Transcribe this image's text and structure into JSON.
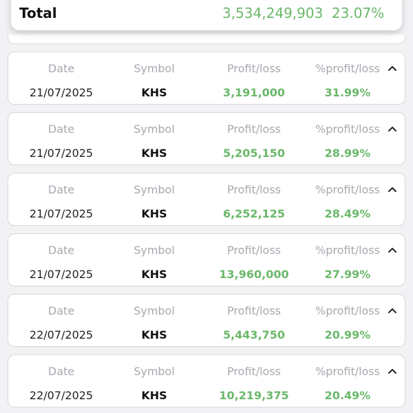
{
  "summary": {
    "label": "Total",
    "profit_loss": "3,534,249,903",
    "percent": "23.07%",
    "color": "#6bb86b"
  },
  "columns": {
    "date": "Date",
    "symbol": "Symbol",
    "profit_loss": "Profit/loss",
    "percent": "%profit/loss"
  },
  "collapse_icon": "chevron-up-icon",
  "trades": [
    {
      "date": "21/07/2025",
      "symbol": "KHS",
      "profit_loss": "3,191,000",
      "percent": "31.99%"
    },
    {
      "date": "21/07/2025",
      "symbol": "KHS",
      "profit_loss": "5,205,150",
      "percent": "28.99%"
    },
    {
      "date": "21/07/2025",
      "symbol": "KHS",
      "profit_loss": "6,252,125",
      "percent": "28.49%"
    },
    {
      "date": "21/07/2025",
      "symbol": "KHS",
      "profit_loss": "13,960,000",
      "percent": "27.99%"
    },
    {
      "date": "22/07/2025",
      "symbol": "KHS",
      "profit_loss": "5,443,750",
      "percent": "20.99%"
    },
    {
      "date": "22/07/2025",
      "symbol": "KHS",
      "profit_loss": "10,219,375",
      "percent": "20.49%"
    }
  ]
}
